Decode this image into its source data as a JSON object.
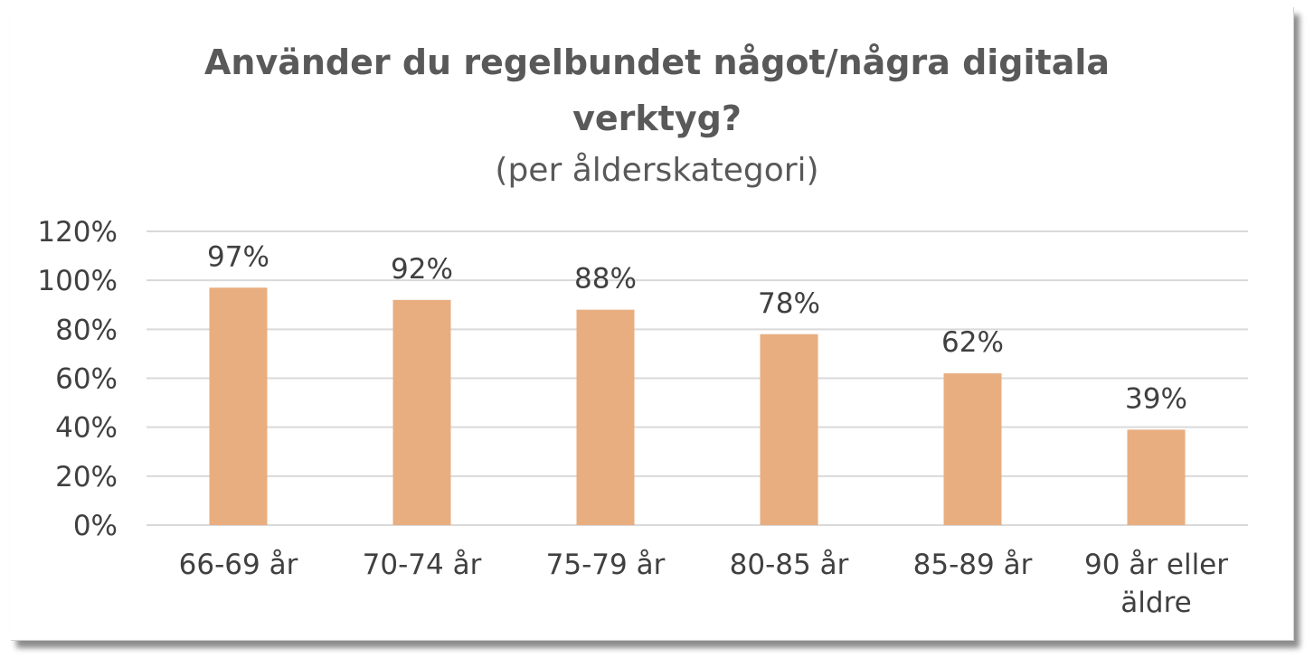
{
  "chart_data": {
    "type": "bar",
    "title_lines": [
      "Använder du regelbundet något/några digitala",
      "verktyg?"
    ],
    "subtitle": "(per ålderskategori)",
    "categories": [
      [
        "66-69 år"
      ],
      [
        "70-74 år"
      ],
      [
        "75-79 år"
      ],
      [
        "80-85 år"
      ],
      [
        "85-89 år"
      ],
      [
        "90 år eller",
        "äldre"
      ]
    ],
    "values": [
      97,
      92,
      88,
      78,
      62,
      39
    ],
    "data_labels": [
      "97%",
      "92%",
      "88%",
      "78%",
      "62%",
      "39%"
    ],
    "y_ticks": [
      "0%",
      "20%",
      "40%",
      "60%",
      "80%",
      "100%",
      "120%"
    ],
    "ylim": [
      0,
      120
    ],
    "ytick_step": 20,
    "grid": true,
    "legend": "none",
    "colors": {
      "bar": "#e8ae80",
      "grid": "#d9d9d9",
      "text": "#404040",
      "title": "#595959"
    }
  }
}
